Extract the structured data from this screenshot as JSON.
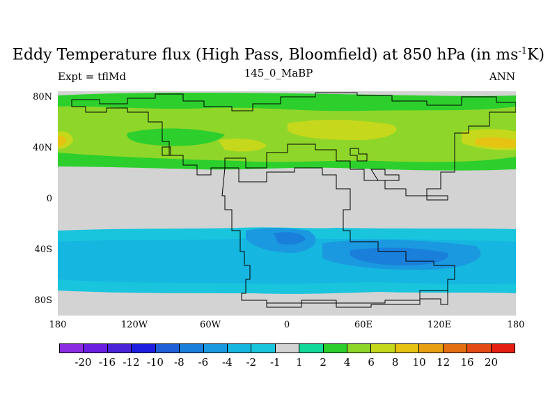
{
  "title": {
    "prefix": "Eddy Temperature flux (High Pass, Bloomfield) at 850 hPa (in ms",
    "sup": "-1",
    "suffix": "K)"
  },
  "subtitle": {
    "left": "Expt = tflMd",
    "center": "145_0_MaBP",
    "right": "ANN"
  },
  "axes": {
    "y_labels": [
      "80N",
      "40N",
      "0",
      "40S",
      "80S"
    ],
    "x_labels": [
      "180",
      "120W",
      "60W",
      "0",
      "60E",
      "120E",
      "180"
    ],
    "lon_range": [
      -180,
      180
    ],
    "lat_range": [
      -90,
      90
    ]
  },
  "colorbar": {
    "labels": [
      "-20",
      "-16",
      "-12",
      "-10",
      "-8",
      "-6",
      "-4",
      "-2",
      "-1",
      "1",
      "2",
      "4",
      "6",
      "8",
      "10",
      "12",
      "16",
      "20"
    ],
    "colors": [
      "#8b2be2",
      "#6a1fe0",
      "#4a22d8",
      "#1e1ee0",
      "#1f5fd8",
      "#1a7fdb",
      "#1a99e0",
      "#15b6e0",
      "#19c4dd",
      "#d3d3d3",
      "#12d89a",
      "#2dcf2d",
      "#8fd62a",
      "#c6d81c",
      "#e6c312",
      "#e8a012",
      "#e46f12",
      "#e44a14",
      "#e62010"
    ]
  },
  "colors": {
    "land_missing": "#d3d3d3",
    "band_light_green": "#8fd62a",
    "band_green": "#2dcf2d",
    "band_yellow": "#c6d81c",
    "band_orange": "#e6c312",
    "band_cyan": "#19c4dd",
    "band_light_blue": "#15b6e0",
    "band_blue": "#1a99e0",
    "band_dark_blue": "#1a7fdb"
  }
}
